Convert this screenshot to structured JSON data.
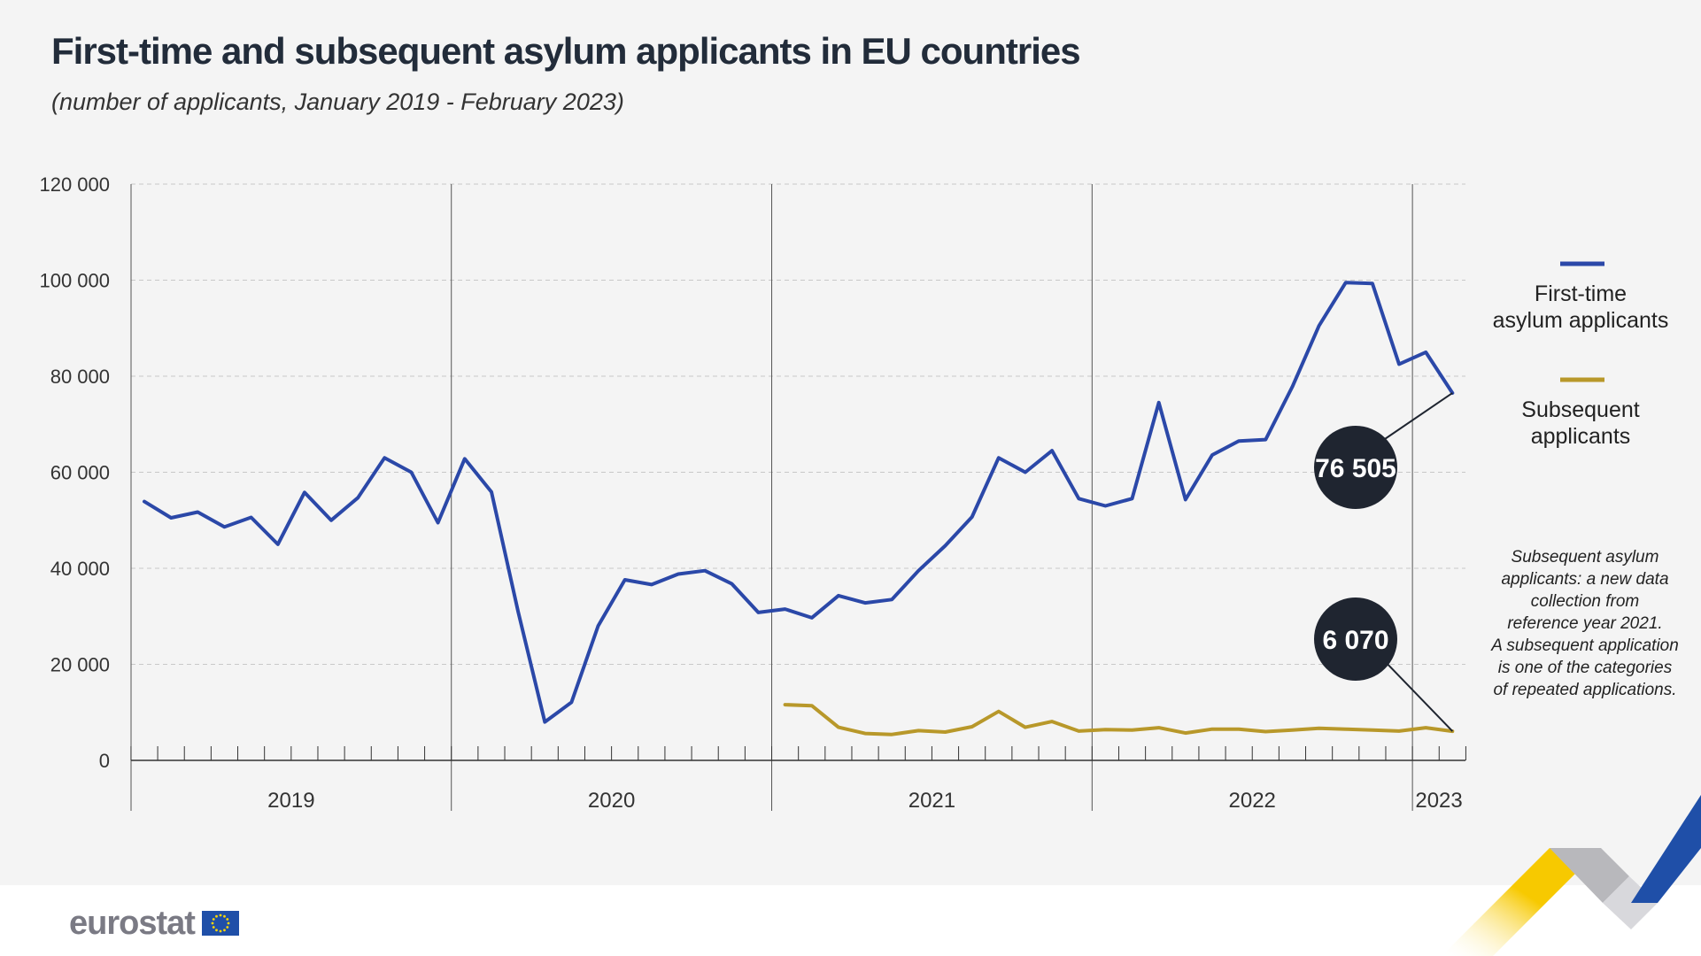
{
  "title": "First-time and subsequent asylum applicants in EU countries",
  "subtitle": "(number of applicants, January 2019 - February 2023)",
  "legend": [
    {
      "line1": "First-time",
      "line2": "asylum applicants",
      "color": "#2b48a8"
    },
    {
      "line1": "Subsequent",
      "line2": "applicants",
      "color": "#b8982a"
    }
  ],
  "note": [
    "Subsequent asylum",
    "applicants: a new data",
    "collection from",
    "reference year 2021.",
    "A subsequent application",
    "is one of the categories",
    "of repeated applications."
  ],
  "brand": {
    "name": "eurostat",
    "flag_color": "#1f4fa8",
    "star_color": "#ffd700",
    "star_icon": "eu-flag-icon"
  },
  "colors": {
    "first_time": "#2b48a8",
    "subsequent": "#b8982a",
    "bubble": "#1f2530",
    "grid": "#c8c8c8"
  },
  "chart_data": {
    "type": "line",
    "title": "First-time and subsequent asylum applicants in EU countries",
    "subtitle": "(number of applicants, January 2019 - February 2023)",
    "x_start": "2019-01",
    "x_end": "2023-02",
    "years": [
      "2019",
      "2020",
      "2021",
      "2022",
      "2023"
    ],
    "ylim": [
      0,
      120000
    ],
    "yticks": [
      0,
      20000,
      40000,
      60000,
      80000,
      100000,
      120000
    ],
    "ytick_labels": [
      "0",
      "20 000",
      "40 000",
      "60 000",
      "80 000",
      "100 000",
      "120 000"
    ],
    "grid": true,
    "legend_position": "right",
    "series": [
      {
        "name": "First-time asylum applicants",
        "start": "2019-01",
        "values": [
          53900,
          50500,
          51700,
          48600,
          50600,
          45000,
          55800,
          50000,
          54700,
          63000,
          60000,
          49500,
          62800,
          55900,
          31000,
          8000,
          12100,
          28000,
          37600,
          36600,
          38800,
          39500,
          36800,
          30800,
          31500,
          29700,
          34300,
          32800,
          33500,
          39500,
          44700,
          50700,
          63000,
          60000,
          64500,
          54500,
          53000,
          54500,
          74500,
          54300,
          63600,
          66500,
          66800,
          77800,
          90500,
          99500,
          99300,
          82500,
          85000,
          76505
        ]
      },
      {
        "name": "Subsequent applicants",
        "start": "2021-01",
        "values": [
          11600,
          11400,
          6900,
          5600,
          5400,
          6200,
          5900,
          7000,
          10200,
          6900,
          8100,
          6100,
          6400,
          6300,
          6800,
          5700,
          6500,
          6500,
          6000,
          6300,
          6700,
          6500,
          6300,
          6100,
          6800,
          6070
        ]
      }
    ],
    "annotations": [
      {
        "series": "First-time asylum applicants",
        "date": "2023-02",
        "label": "76 505"
      },
      {
        "series": "Subsequent applicants",
        "date": "2023-02",
        "label": "6 070"
      }
    ]
  }
}
